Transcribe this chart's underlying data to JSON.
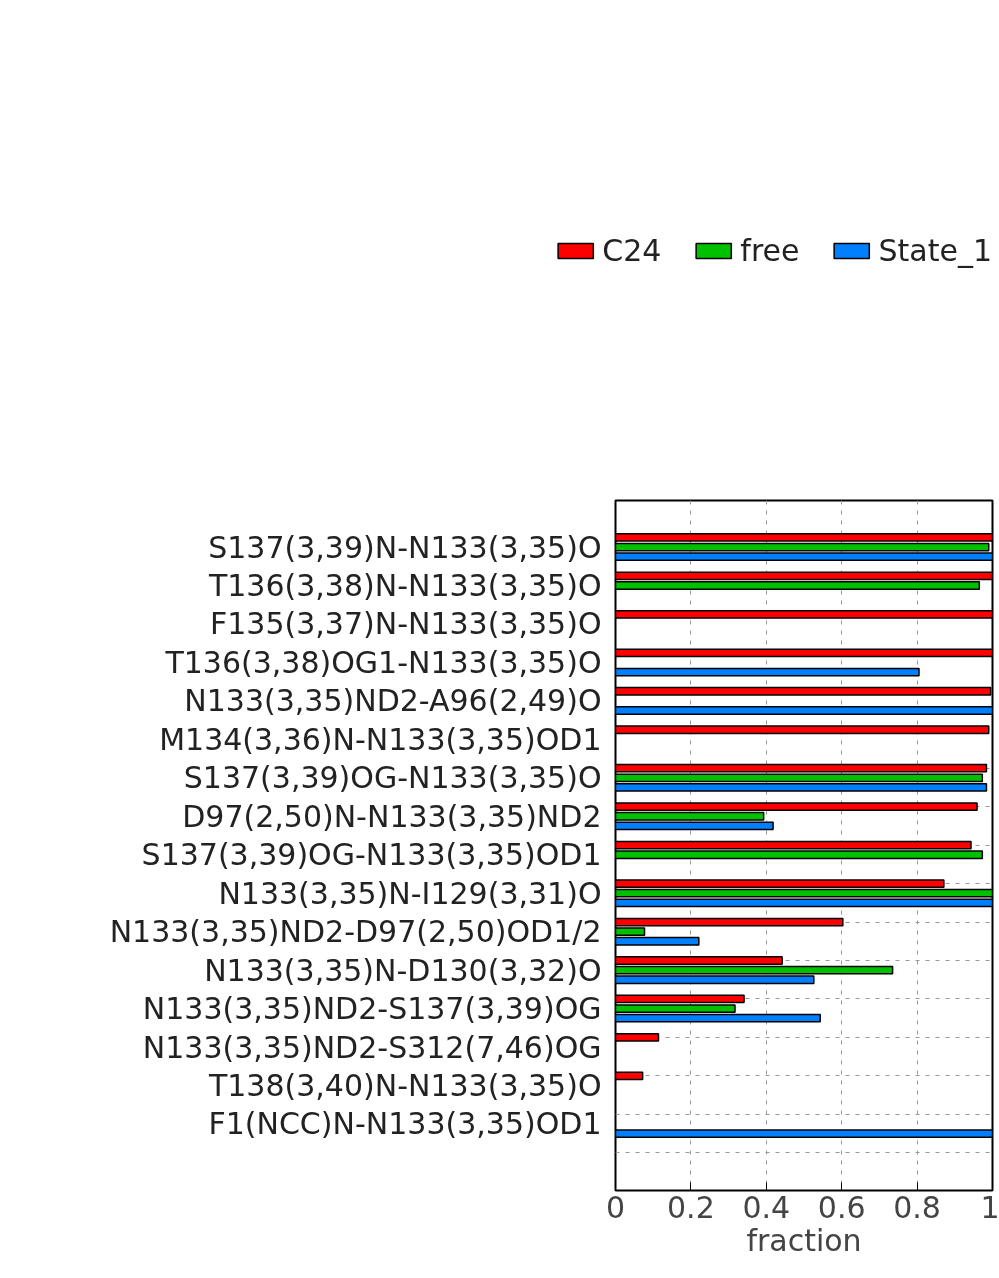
{
  "chart_data": {
    "type": "bar",
    "orientation": "horizontal",
    "xlabel": "fraction",
    "categories": [
      "S137(3,39)N-N133(3,35)O",
      "T136(3,38)N-N133(3,35)O",
      "F135(3,37)N-N133(3,35)O",
      "T136(3,38)OG1-N133(3,35)O",
      "N133(3,35)ND2-A96(2,49)O",
      "M134(3,36)N-N133(3,35)OD1",
      "S137(3,39)OG-N133(3,35)O",
      "D97(2,50)N-N133(3,35)ND2",
      "S137(3,39)OG-N133(3,35)OD1",
      "N133(3,35)N-I129(3,31)O",
      "N133(3,35)ND2-D97(2,50)OD1/2",
      "N133(3,35)N-D130(3,32)O",
      "N133(3,35)ND2-S137(3,39)OG",
      "N133(3,35)ND2-S312(7,46)OG",
      "T138(3,40)N-N133(3,35)O",
      "F1(NCC)N-N133(3,35)OD1"
    ],
    "series": [
      {
        "name": "C24",
        "color": "#ff0000",
        "values": [
          1,
          1,
          1,
          1,
          0.995,
          0.99,
          0.984,
          0.959,
          0.943,
          0.871,
          0.603,
          0.442,
          0.341,
          0.114,
          0.072,
          null
        ]
      },
      {
        "name": "free",
        "color": "#00c000",
        "values": [
          0.99,
          0.965,
          null,
          null,
          null,
          null,
          0.973,
          0.393,
          0.973,
          1,
          0.077,
          0.735,
          0.317,
          null,
          null,
          null
        ]
      },
      {
        "name": "State_1",
        "color": "#0080ff",
        "values": [
          1,
          null,
          null,
          0.805,
          1,
          null,
          0.984,
          0.418,
          null,
          1,
          0.221,
          0.526,
          0.543,
          null,
          null,
          1
        ]
      }
    ],
    "xlim": [
      0,
      1
    ],
    "xticks": [
      0,
      0.2,
      0.4,
      0.6,
      0.8,
      1
    ],
    "grid": true,
    "legend": "top"
  }
}
